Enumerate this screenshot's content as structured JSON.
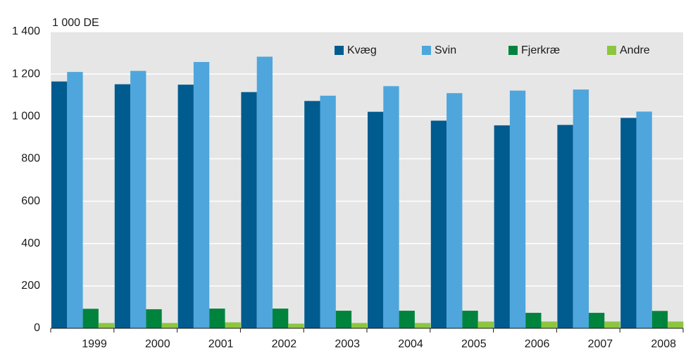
{
  "chart_data": {
    "type": "bar",
    "y_axis_label": "1 000 DE",
    "categories": [
      "1999",
      "2000",
      "2001",
      "2002",
      "2003",
      "2004",
      "2005",
      "2006",
      "2007",
      "2008"
    ],
    "series": [
      {
        "name": "Kvæg",
        "color": "#005b8f",
        "values": [
          1165,
          1152,
          1150,
          1115,
          1073,
          1022,
          980,
          958,
          960,
          993
        ]
      },
      {
        "name": "Svin",
        "color": "#4ea6dc",
        "values": [
          1210,
          1215,
          1257,
          1282,
          1098,
          1143,
          1110,
          1122,
          1127,
          1023
        ]
      },
      {
        "name": "Fjerkræ",
        "color": "#00843d",
        "values": [
          92,
          90,
          93,
          93,
          83,
          83,
          83,
          73,
          73,
          82
        ]
      },
      {
        "name": "Andre",
        "color": "#8cc63f",
        "values": [
          25,
          25,
          28,
          22,
          25,
          25,
          32,
          32,
          32,
          32
        ]
      }
    ],
    "ylim": [
      0,
      1400
    ],
    "yticks": [
      0,
      200,
      400,
      600,
      800,
      {
        "value": 1000,
        "label": "1 000"
      },
      {
        "value": 1200,
        "label": "1 200"
      },
      {
        "value": 1400,
        "label": "1 400"
      }
    ],
    "grid": true,
    "legend": "top-right"
  }
}
